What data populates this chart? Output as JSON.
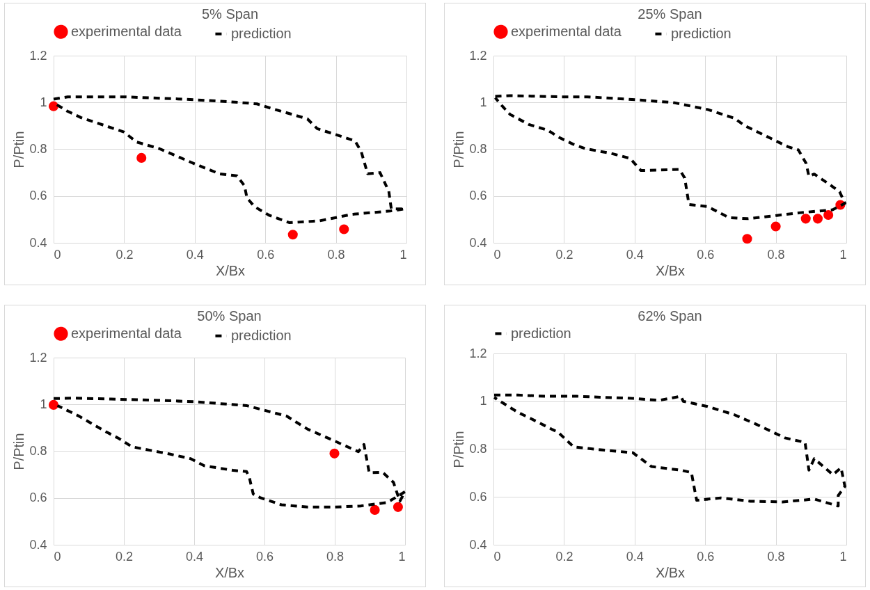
{
  "chart_data": [
    {
      "type": "scatter",
      "title": "5% Span",
      "xlabel": "X/Bx",
      "ylabel": "P/Ptin",
      "xlim": [
        0,
        1
      ],
      "ylim": [
        0.4,
        1.2
      ],
      "xticks": [
        0,
        0.2,
        0.4,
        0.6,
        0.8,
        1
      ],
      "yticks": [
        0.4,
        0.6,
        0.8,
        1,
        1.2
      ],
      "grid": true,
      "legend": "top",
      "series": [
        {
          "name": "experimental data",
          "marker": "circle",
          "color": "#ff0000",
          "x": [
            0,
            0.249,
            0.678,
            0.823
          ],
          "values": [
            0.984,
            0.763,
            0.435,
            0.458
          ]
        },
        {
          "name": "prediction",
          "type": "line",
          "color": "#000000",
          "line_style": "dashed",
          "x": [
            0,
            0.04,
            0.2,
            0.37,
            0.5,
            0.576,
            0.612,
            0.719,
            0.747,
            0.854,
            0.872,
            0.89,
            0.925,
            0.95,
            0.957,
            0.996,
            0.954,
            0.847,
            0.754,
            0.669,
            0.612,
            0.569,
            0.548,
            0.541,
            0.52,
            0.47,
            0.399,
            0.299,
            0.235,
            0.199,
            0.078,
            0.039,
            0.004
          ],
          "values": [
            1.014,
            1.024,
            1.024,
            1.014,
            1.003,
            0.994,
            0.977,
            0.93,
            0.888,
            0.836,
            0.789,
            0.695,
            0.7,
            0.62,
            0.545,
            0.545,
            0.536,
            0.522,
            0.494,
            0.486,
            0.517,
            0.555,
            0.592,
            0.644,
            0.686,
            0.695,
            0.738,
            0.803,
            0.831,
            0.874,
            0.935,
            0.963,
            0.995
          ]
        }
      ]
    },
    {
      "type": "scatter",
      "title": "25% Span",
      "xlabel": "X/Bx",
      "ylabel": "P/Ptin",
      "xlim": [
        0,
        1
      ],
      "ylim": [
        0.4,
        1.2
      ],
      "xticks": [
        0,
        0.2,
        0.4,
        0.6,
        0.8,
        1
      ],
      "yticks": [
        0.4,
        0.6,
        0.8,
        1,
        1.2
      ],
      "grid": true,
      "legend": "top",
      "series": [
        {
          "name": "experimental data",
          "marker": "circle",
          "color": "#ff0000",
          "x": [
            0.719,
            0.8,
            0.885,
            0.919,
            0.949,
            0.983
          ],
          "values": [
            0.417,
            0.47,
            0.503,
            0.503,
            0.519,
            0.562
          ]
        },
        {
          "name": "prediction",
          "type": "line",
          "color": "#000000",
          "line_style": "dashed",
          "x": [
            0.005,
            0.047,
            0.191,
            0.266,
            0.38,
            0.508,
            0.607,
            0.682,
            0.713,
            0.758,
            0.834,
            0.864,
            0.886,
            0.894,
            0.909,
            0.955,
            0.981,
            0.996,
            0.961,
            0.871,
            0.803,
            0.72,
            0.667,
            0.607,
            0.554,
            0.542,
            0.527,
            0.418,
            0.387,
            0.334,
            0.259,
            0.225,
            0.187,
            0.153,
            0.1,
            0.047,
            0.024,
            0.005
          ],
          "values": [
            1.026,
            1.029,
            1.024,
            1.024,
            1.014,
            1.0,
            0.97,
            0.933,
            0.9,
            0.867,
            0.811,
            0.797,
            0.74,
            0.684,
            0.694,
            0.647,
            0.618,
            0.569,
            0.541,
            0.529,
            0.517,
            0.503,
            0.508,
            0.555,
            0.564,
            0.677,
            0.714,
            0.709,
            0.761,
            0.782,
            0.803,
            0.822,
            0.85,
            0.882,
            0.906,
            0.949,
            0.986,
            1.02
          ]
        }
      ]
    },
    {
      "type": "scatter",
      "title": "50% Span",
      "xlabel": "X/Bx",
      "ylabel": "P/Ptin",
      "xlim": [
        0,
        1
      ],
      "ylim": [
        0.4,
        1.2
      ],
      "xticks": [
        0,
        0.2,
        0.4,
        0.6,
        0.8,
        1
      ],
      "yticks": [
        0.4,
        0.6,
        0.8,
        1,
        1.2
      ],
      "grid": true,
      "legend": "top",
      "series": [
        {
          "name": "experimental data",
          "marker": "circle",
          "color": "#ff0000",
          "x": [
            0,
            0.799,
            0.914,
            0.98
          ],
          "values": [
            0.998,
            0.79,
            0.549,
            0.561
          ]
        },
        {
          "name": "prediction",
          "type": "line",
          "color": "#000000",
          "line_style": "dashed",
          "x": [
            0,
            0.057,
            0.163,
            0.284,
            0.398,
            0.504,
            0.549,
            0.663,
            0.723,
            0.799,
            0.867,
            0.883,
            0.898,
            0.936,
            0.967,
            0.985,
            1.0,
            0.95,
            0.874,
            0.799,
            0.723,
            0.648,
            0.587,
            0.568,
            0.557,
            0.549,
            0.511,
            0.428,
            0.39,
            0.33,
            0.223,
            0.186,
            0.148,
            0.072,
            0.011
          ],
          "values": [
            1.025,
            1.027,
            1.023,
            1.018,
            1.012,
            1.0,
            0.995,
            0.95,
            0.894,
            0.844,
            0.798,
            0.829,
            0.708,
            0.71,
            0.667,
            0.586,
            0.627,
            0.581,
            0.566,
            0.561,
            0.561,
            0.571,
            0.602,
            0.617,
            0.687,
            0.713,
            0.718,
            0.738,
            0.768,
            0.788,
            0.819,
            0.854,
            0.884,
            0.95,
            0.995
          ]
        }
      ]
    },
    {
      "type": "line",
      "title": "62% Span",
      "xlabel": "X/Bx",
      "ylabel": "P/Ptin",
      "xlim": [
        0,
        1
      ],
      "ylim": [
        0.4,
        1.2
      ],
      "xticks": [
        0,
        0.2,
        0.4,
        0.6,
        0.8,
        1
      ],
      "yticks": [
        0.4,
        0.6,
        0.8,
        1,
        1.2
      ],
      "grid": true,
      "legend": "top",
      "series": [
        {
          "name": "prediction",
          "color": "#000000",
          "line_style": "dashed",
          "x": [
            0.002,
            0.069,
            0.145,
            0.236,
            0.319,
            0.395,
            0.47,
            0.531,
            0.538,
            0.607,
            0.682,
            0.743,
            0.826,
            0.883,
            0.894,
            0.909,
            0.962,
            0.985,
            0.996,
            0.977,
            0.977,
            0.909,
            0.819,
            0.728,
            0.644,
            0.576,
            0.572,
            0.561,
            0.531,
            0.448,
            0.395,
            0.289,
            0.228,
            0.221,
            0.183,
            0.168,
            0.123,
            0.069,
            0.017,
            0.002
          ],
          "values": [
            1.026,
            1.026,
            1.021,
            1.021,
            1.016,
            1.012,
            1.004,
            1.021,
            1.0,
            0.978,
            0.944,
            0.905,
            0.847,
            0.828,
            0.712,
            0.76,
            0.693,
            0.722,
            0.644,
            0.606,
            0.562,
            0.591,
            0.579,
            0.582,
            0.596,
            0.586,
            0.615,
            0.702,
            0.712,
            0.727,
            0.785,
            0.799,
            0.809,
            0.818,
            0.871,
            0.881,
            0.915,
            0.954,
            1.002,
            1.016
          ]
        }
      ]
    }
  ]
}
